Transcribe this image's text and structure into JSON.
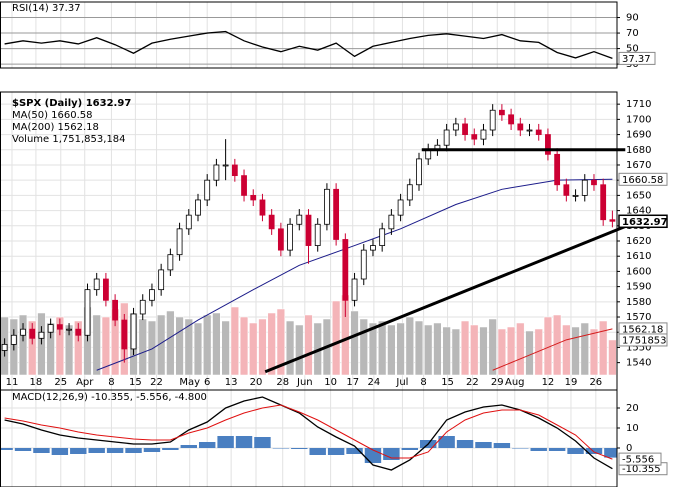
{
  "chart_data": [
    {
      "type": "line",
      "title": "RSI(14) 37.37",
      "series": [
        {
          "color": "#000000",
          "x": [
            0,
            2,
            4,
            6,
            8,
            10,
            12,
            14,
            16,
            18,
            20,
            22,
            24,
            26,
            28,
            30,
            32,
            34,
            36,
            38,
            40,
            42,
            44,
            46,
            48,
            50,
            52,
            54,
            56,
            58,
            60,
            62,
            64,
            66
          ],
          "values": [
            56,
            60,
            57,
            60,
            56,
            64,
            55,
            44,
            57,
            62,
            66,
            70,
            72,
            60,
            52,
            46,
            53,
            48,
            57,
            40,
            53,
            58,
            63,
            67,
            69,
            66,
            63,
            68,
            60,
            58,
            45,
            38,
            46,
            37.37
          ]
        }
      ],
      "xlim": [
        -0.5,
        66.5
      ],
      "ylim": [
        25,
        110
      ],
      "yticks": [
        90,
        70,
        50,
        30
      ],
      "grid": true
    },
    {
      "type": "candlestick",
      "title": "$SPX (Daily) 1632.97",
      "open": [
        1548,
        1552,
        1558,
        1562,
        1556,
        1560,
        1565,
        1562,
        1562,
        1558,
        1588,
        1595,
        1581,
        1568,
        1549,
        1572,
        1581,
        1588,
        1601,
        1611,
        1628,
        1637,
        1647,
        1660,
        1670,
        1670,
        1663,
        1650,
        1647,
        1637,
        1628,
        1614,
        1631,
        1637,
        1617,
        1631,
        1654,
        1621,
        1581,
        1595,
        1614,
        1617,
        1628,
        1637,
        1647,
        1657,
        1674,
        1680,
        1683,
        1693,
        1697,
        1690,
        1687,
        1693,
        1706,
        1703,
        1697,
        1693,
        1693,
        1690,
        1677,
        1657,
        1650,
        1650,
        1660,
        1657,
        1634
      ],
      "high": [
        1556,
        1562,
        1566,
        1566,
        1564,
        1569,
        1569,
        1566,
        1566,
        1592,
        1599,
        1599,
        1585,
        1572,
        1576,
        1585,
        1592,
        1605,
        1615,
        1632,
        1641,
        1651,
        1664,
        1674,
        1687,
        1674,
        1667,
        1654,
        1651,
        1641,
        1632,
        1635,
        1641,
        1641,
        1635,
        1658,
        1658,
        1625,
        1599,
        1618,
        1621,
        1632,
        1641,
        1651,
        1661,
        1678,
        1684,
        1687,
        1697,
        1701,
        1701,
        1694,
        1697,
        1710,
        1710,
        1707,
        1701,
        1697,
        1697,
        1694,
        1681,
        1661,
        1654,
        1664,
        1664,
        1661,
        1640
      ],
      "low": [
        1544,
        1548,
        1554,
        1552,
        1552,
        1556,
        1558,
        1558,
        1554,
        1554,
        1584,
        1577,
        1564,
        1540,
        1545,
        1568,
        1577,
        1584,
        1597,
        1607,
        1624,
        1633,
        1643,
        1656,
        1660,
        1659,
        1646,
        1643,
        1633,
        1624,
        1610,
        1610,
        1627,
        1605,
        1613,
        1627,
        1617,
        1570,
        1577,
        1591,
        1610,
        1613,
        1624,
        1633,
        1643,
        1653,
        1670,
        1676,
        1679,
        1689,
        1686,
        1683,
        1683,
        1689,
        1699,
        1693,
        1689,
        1689,
        1686,
        1673,
        1653,
        1646,
        1646,
        1646,
        1653,
        1630,
        1629
      ],
      "close": [
        1552,
        1558,
        1562,
        1556,
        1560,
        1565,
        1562,
        1562,
        1558,
        1588,
        1595,
        1581,
        1568,
        1549,
        1572,
        1581,
        1588,
        1601,
        1611,
        1628,
        1637,
        1647,
        1660,
        1670,
        1670,
        1663,
        1650,
        1647,
        1637,
        1628,
        1614,
        1631,
        1637,
        1617,
        1631,
        1654,
        1621,
        1581,
        1595,
        1614,
        1617,
        1628,
        1637,
        1647,
        1657,
        1674,
        1680,
        1683,
        1693,
        1697,
        1690,
        1687,
        1693,
        1706,
        1703,
        1697,
        1693,
        1693,
        1690,
        1677,
        1657,
        1650,
        1650,
        1660,
        1657,
        1634,
        1632.97
      ],
      "up_color": "#ffffff",
      "down_color": "#cc0033",
      "series": [
        {
          "name": "MA(50) 1660.58",
          "color": "#1c1c8a",
          "x": [
            10,
            16,
            21,
            27,
            32,
            38,
            43,
            49,
            54,
            60,
            66
          ],
          "values": [
            1535,
            1549,
            1568,
            1588,
            1604,
            1617,
            1628,
            1644,
            1654,
            1660,
            1660.58
          ]
        },
        {
          "name": "MA(200) 1562.18",
          "color": "#d41c1c",
          "x": [
            53,
            57,
            61,
            66
          ],
          "values": [
            1535,
            1545,
            1555,
            1562.18
          ]
        }
      ],
      "volume": {
        "name": "Volume 1,751,853,184",
        "up_color": "#b8b8b8",
        "down_color": "#f4b4b8",
        "ylim": [
          0,
          4500000
        ],
        "values": [
          2900000,
          2800000,
          3000000,
          2700000,
          3100000,
          2600000,
          2900000,
          2500000,
          2700000,
          3400000,
          3000000,
          2900000,
          3300000,
          3600000,
          3100000,
          2800000,
          2700000,
          3000000,
          3200000,
          2900000,
          2800000,
          2600000,
          3000000,
          3100000,
          2700000,
          3400000,
          2900000,
          2600000,
          2800000,
          3100000,
          3300000,
          2700000,
          2500000,
          3000000,
          2600000,
          2800000,
          3700000,
          4000000,
          3200000,
          2800000,
          2600000,
          2700000,
          2500000,
          2600000,
          2900000,
          2700000,
          2500000,
          2600000,
          2400000,
          2300000,
          2700000,
          2500000,
          2400000,
          2800000,
          2300000,
          2400000,
          2600000,
          2200000,
          2300000,
          2900000,
          3000000,
          2500000,
          2400000,
          2600000,
          2300000,
          2700000,
          1751853
        ]
      },
      "lines": [
        {
          "x": [
            45.3,
            67.4
          ],
          "y": [
            1680,
            1680
          ]
        },
        {
          "x": [
            28.3,
            68
          ],
          "y": [
            1534,
            1631
          ]
        }
      ],
      "xlim": [
        -0.5,
        66.5
      ],
      "xticks": [
        {
          "value": 0.8,
          "label": "11"
        },
        {
          "value": 3.4,
          "label": "18"
        },
        {
          "value": 6.1,
          "label": "25"
        },
        {
          "value": 8.7,
          "label": "Apr"
        },
        {
          "value": 11.6,
          "label": "8"
        },
        {
          "value": 14.2,
          "label": "15"
        },
        {
          "value": 16.5,
          "label": "22"
        },
        {
          "value": 20.1,
          "label": "May"
        },
        {
          "value": 22,
          "label": "6"
        },
        {
          "value": 24.6,
          "label": "13"
        },
        {
          "value": 27.3,
          "label": "20"
        },
        {
          "value": 30.2,
          "label": "28"
        },
        {
          "value": 32.6,
          "label": "Jun"
        },
        {
          "value": 35.4,
          "label": "10"
        },
        {
          "value": 37.8,
          "label": "17"
        },
        {
          "value": 40.1,
          "label": "24"
        },
        {
          "value": 43.2,
          "label": "Jul"
        },
        {
          "value": 45.5,
          "label": "8"
        },
        {
          "value": 48.1,
          "label": "15"
        },
        {
          "value": 50.8,
          "label": "22"
        },
        {
          "value": 53.5,
          "label": "29"
        },
        {
          "value": 55.4,
          "label": "Aug"
        },
        {
          "value": 59,
          "label": "12"
        },
        {
          "value": 61.5,
          "label": "19"
        },
        {
          "value": 64.2,
          "label": "26"
        }
      ],
      "ylim": [
        1522,
        1718
      ],
      "yticks": [
        1540,
        1550,
        1560,
        1570,
        1580,
        1590,
        1600,
        1610,
        1620,
        1630,
        1640,
        1650,
        1660,
        1670,
        1680,
        1690,
        1700,
        1710
      ],
      "grid": true
    },
    {
      "type": "line",
      "title": "MACD(12,26,9) -10.355, -5.556, -4.800",
      "x": [
        0,
        2,
        4,
        6,
        8,
        10,
        12,
        14,
        16,
        18,
        20,
        22,
        24,
        26,
        28,
        30,
        32,
        34,
        36,
        38,
        40,
        42,
        44,
        46,
        48,
        50,
        52,
        54,
        56,
        58,
        60,
        62,
        64,
        66
      ],
      "series": [
        {
          "color": "#000000",
          "values": [
            14,
            12,
            9,
            6.5,
            5,
            4,
            3,
            2,
            2,
            3,
            9,
            13,
            20,
            23.5,
            25.5,
            21.5,
            17.5,
            10.5,
            5.5,
            1,
            -8.5,
            -11,
            -6,
            2,
            14,
            18,
            20.5,
            21.5,
            19,
            15,
            10,
            3.5,
            -5,
            -10.355
          ]
        },
        {
          "color": "#e01010",
          "values": [
            15,
            13.5,
            11.5,
            10,
            8,
            6.5,
            5.5,
            4.5,
            4,
            4,
            7.5,
            10,
            14,
            17.5,
            20,
            21.5,
            18,
            14,
            9,
            4,
            -1,
            -5,
            -5,
            -2,
            8,
            14,
            17.5,
            19,
            19,
            16.5,
            11.5,
            6.5,
            -2,
            -5.556
          ]
        }
      ],
      "histogram": {
        "color": "#4a7fc1",
        "values": [
          -1,
          -1.5,
          -2.5,
          -3.5,
          -3,
          -2.5,
          -2.5,
          -2.5,
          -2,
          -1,
          1.5,
          3,
          6,
          6,
          5.5,
          0,
          -0.5,
          -3.5,
          -3.5,
          -3,
          -7.5,
          -6,
          -1,
          4,
          6,
          4,
          3,
          2.5,
          0,
          -1.5,
          -1.5,
          -3,
          -3,
          -4.8
        ]
      },
      "xlim": [
        -0.5,
        66.5
      ],
      "ylim": [
        -19.5,
        29
      ],
      "yticks": [
        20,
        10,
        0
      ],
      "grid": true
    }
  ]
}
